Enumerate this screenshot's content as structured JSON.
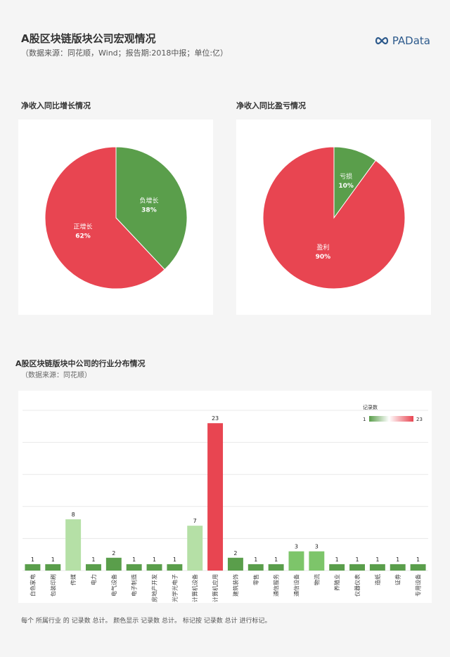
{
  "header": {
    "title": "A股区块链版块公司宏观情况",
    "subtitle": "（数据来源：同花顺，Wind；报告期:2018中报；单位:亿）",
    "logo_text": "PAData"
  },
  "section1": {
    "title": "净收入同比增长情况"
  },
  "section2": {
    "title": "净收入同比盈亏情况"
  },
  "section3": {
    "title": "A股区块链版块中公司的行业分布情况",
    "subtitle": "（数据来源：同花顺）"
  },
  "footer": {
    "note": "每个 所属行业 的 记录数 总计。 颜色显示 记录数 总计。 标记按 记录数 总计 进行标记。"
  },
  "colors": {
    "green": "#5a9e4b",
    "red": "#e84551",
    "light_green": "#b5e0a6"
  },
  "chart_data": [
    {
      "type": "pie",
      "title": "净收入同比增长情况",
      "slices": [
        {
          "label": "负增长",
          "pct_label": "38%",
          "value": 38,
          "color": "#5a9e4b"
        },
        {
          "label": "正增长",
          "pct_label": "62%",
          "value": 62,
          "color": "#e84551"
        }
      ]
    },
    {
      "type": "pie",
      "title": "净收入同比盈亏情况",
      "slices": [
        {
          "label": "亏损",
          "pct_label": "10%",
          "value": 10,
          "color": "#5a9e4b"
        },
        {
          "label": "盈利",
          "pct_label": "90%",
          "value": 90,
          "color": "#e84551"
        }
      ]
    },
    {
      "type": "bar",
      "title": "A股区块链版块中公司的行业分布情况",
      "categories": [
        "白色家电",
        "包装印刷",
        "传媒",
        "电力",
        "电气设备",
        "电子制造",
        "房地产开发",
        "光学光电子",
        "计算机设备",
        "计算机应用",
        "建筑装饰",
        "零售",
        "通信服务",
        "通信设备",
        "物流",
        "养殖业",
        "仪器仪表",
        "造纸",
        "证券",
        "专用设备"
      ],
      "values": [
        1,
        1,
        8,
        1,
        2,
        1,
        1,
        1,
        7,
        23,
        2,
        1,
        1,
        3,
        3,
        1,
        1,
        1,
        1,
        1
      ],
      "value_labels": [
        "1",
        "1",
        "8",
        "1",
        "2",
        "1",
        "1",
        "1",
        "7",
        "23",
        "2",
        "1",
        "1",
        "3",
        "3",
        "1",
        "1",
        "1",
        "1",
        "1"
      ],
      "ylim": [
        0,
        25
      ],
      "grid": true,
      "legend": {
        "title": "记录数",
        "min_label": "1",
        "max_label": "23",
        "placement": "top-right"
      }
    }
  ]
}
